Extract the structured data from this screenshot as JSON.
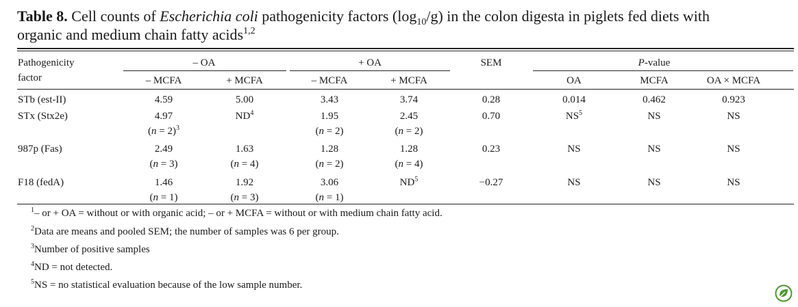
{
  "title": {
    "label": "Table 8.",
    "part1": " Cell counts of ",
    "organism": "Escherichia coli",
    "part2": " pathogenicity factors (log",
    "log_base": "10",
    "part3": "/g) in the colon digesta in piglets fed diets with",
    "line2": "organic and medium chain fatty acids",
    "line2_sup": "1,2"
  },
  "header": {
    "factor_line1": "Pathogenicity",
    "factor_line2": "factor",
    "minus_oa": "– OA",
    "plus_oa": "+ OA",
    "sem": "SEM",
    "p_value_italic": "P",
    "p_value_rest": "-value",
    "minus_mcfa": "– MCFA",
    "plus_mcfa": "+ MCFA",
    "minus_mcfa_2": "– MCFA",
    "plus_mcfa_2": "+ MCFA",
    "p_oa": "OA",
    "p_mcfa": "MCFA",
    "p_interaction": "OA × MCFA"
  },
  "rows": [
    {
      "factor": "STb (est-II)",
      "values": [
        "4.59",
        "5.00",
        "3.43",
        "3.74"
      ],
      "n": [
        "",
        "",
        "",
        ""
      ],
      "value_sups": [
        "",
        "",
        "",
        ""
      ],
      "n_sups": [
        "",
        "",
        "",
        ""
      ],
      "sem": "0.28",
      "p_oa": "0.014",
      "p_oa_sup": "",
      "p_mcfa": "0.462",
      "p_int": "0.923"
    },
    {
      "factor": "STx (Stx2e)",
      "values": [
        "4.97",
        "ND",
        "1.95",
        "2.45"
      ],
      "value_sups": [
        "",
        "4",
        "",
        ""
      ],
      "n": [
        "2",
        "",
        "2",
        "2"
      ],
      "n_sups": [
        "3",
        "",
        "",
        ""
      ],
      "sem": "0.70",
      "p_oa": "NS",
      "p_oa_sup": "5",
      "p_mcfa": "NS",
      "p_int": "NS"
    },
    {
      "factor": "987p (Fas)",
      "values": [
        "2.49",
        "1.63",
        "1.28",
        "1.28"
      ],
      "value_sups": [
        "",
        "",
        "",
        ""
      ],
      "n": [
        "3",
        "4",
        "2",
        "4"
      ],
      "n_sups": [
        "",
        "",
        "",
        ""
      ],
      "sem": "0.23",
      "p_oa": "NS",
      "p_oa_sup": "",
      "p_mcfa": "NS",
      "p_int": "NS"
    },
    {
      "factor": "F18 (fedA)",
      "values": [
        "1.46",
        "1.92",
        "3.06",
        "ND"
      ],
      "value_sups": [
        "",
        "",
        "",
        "5"
      ],
      "n": [
        "1",
        "3",
        "1",
        ""
      ],
      "n_sups": [
        "",
        "",
        "",
        ""
      ],
      "sem": "−0.27",
      "p_oa": "NS",
      "p_oa_sup": "",
      "p_mcfa": "NS",
      "p_int": "NS"
    }
  ],
  "n_prefix": "(",
  "n_symbol": "n",
  "n_equals": " = ",
  "n_suffix": ")",
  "footnotes": [
    {
      "mark": "1",
      "text": "– or + OA = without or with organic acid; – or + MCFA = without or with medium chain fatty acid."
    },
    {
      "mark": "2",
      "text": "Data are means and pooled SEM; the number of samples was 6 per group."
    },
    {
      "mark": "3",
      "text": "Number of positive samples"
    },
    {
      "mark": "4",
      "text": "ND = not detected."
    },
    {
      "mark": "5",
      "text": "NS = no statistical evaluation because of the low sample number."
    }
  ],
  "colors": {
    "text": "#1a1a1a",
    "rule": "#222222",
    "logo": "#4a9a2e"
  },
  "logo_icon": "leaf-badge-icon"
}
